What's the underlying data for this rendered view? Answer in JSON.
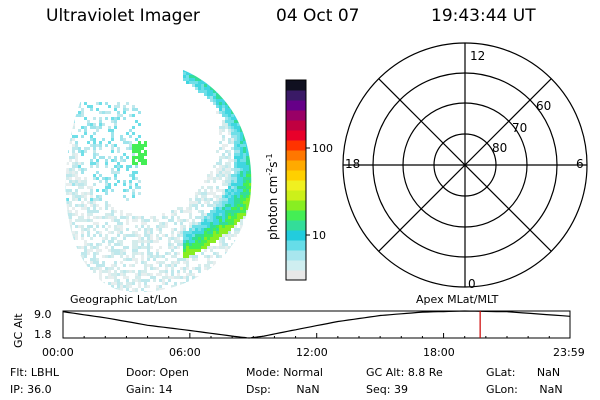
{
  "header": {
    "instrument": "Ultraviolet Imager",
    "date": "04 Oct 07",
    "time": "19:43:44 UT"
  },
  "colorbar": {
    "label": "photon cm",
    "label_sup1": "-2",
    "label_mid": "s",
    "label_sup2": "-1",
    "ticks": [
      {
        "value": 100,
        "label": "100"
      },
      {
        "value": 10,
        "label": "10"
      }
    ],
    "colors": [
      "#e8e8e8",
      "#cfeef0",
      "#a8e6ee",
      "#66dde8",
      "#22ccdd",
      "#33dd99",
      "#44ee55",
      "#88ee22",
      "#ccf01a",
      "#f0f020",
      "#ffd000",
      "#ffaa00",
      "#ff7700",
      "#ff3300",
      "#e8002a",
      "#c00040",
      "#990066",
      "#660088",
      "#3a1a66",
      "#101020"
    ]
  },
  "polar_plot": {
    "mlt_labels": {
      "top": "12",
      "left": "18",
      "right": "6",
      "bottom": "0"
    },
    "lat_labels": [
      "60",
      "70",
      "80"
    ]
  },
  "timeline": {
    "left_title": "Geographic Lat/Lon",
    "right_title": "Apex  MLat/MLT",
    "axis_label": "GC Alt",
    "y_ticks": [
      "9.0",
      "1.8"
    ],
    "x_ticks": [
      "00:00",
      "06:00",
      "12:00",
      "18:00",
      "23:59"
    ],
    "altitude_curve": [
      {
        "t": 0.0,
        "alt": 8.8
      },
      {
        "t": 2.0,
        "alt": 7.2
      },
      {
        "t": 4.0,
        "alt": 5.2
      },
      {
        "t": 6.0,
        "alt": 3.8
      },
      {
        "t": 8.0,
        "alt": 2.3
      },
      {
        "t": 8.8,
        "alt": 1.8
      },
      {
        "t": 9.5,
        "alt": 2.3
      },
      {
        "t": 11.0,
        "alt": 4.0
      },
      {
        "t": 13.0,
        "alt": 6.2
      },
      {
        "t": 15.0,
        "alt": 7.8
      },
      {
        "t": 17.0,
        "alt": 8.7
      },
      {
        "t": 19.0,
        "alt": 9.0
      },
      {
        "t": 21.0,
        "alt": 8.8
      },
      {
        "t": 23.98,
        "alt": 7.6
      }
    ],
    "current_time_marker": 19.73
  },
  "status": {
    "filter_label": "Flt:",
    "filter_value": "LBHL",
    "ip_label": "IP:",
    "ip_value": "36.0",
    "door_label": "Door:",
    "door_value": "Open",
    "gain_label": "Gain:",
    "gain_value": "14",
    "mode_label": "Mode:",
    "mode_value": "Normal",
    "dsp_label": "Dsp:",
    "dsp_value": "NaN",
    "gcalt_label": "GC Alt:",
    "gcalt_value": "8.8 Re",
    "seq_label": "Seq:",
    "seq_value": "39",
    "glat_label": "GLat:",
    "glat_value": "NaN",
    "glon_label": "GLon:",
    "glon_value": "NaN"
  }
}
